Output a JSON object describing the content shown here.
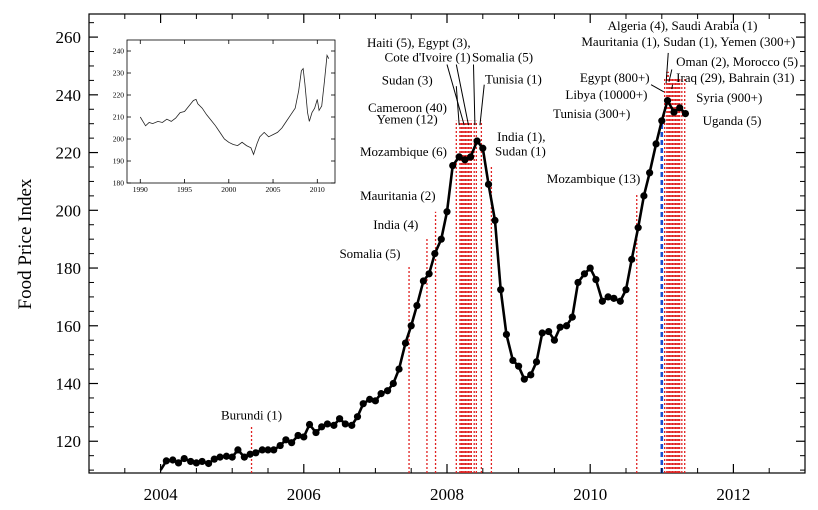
{
  "chart_data": {
    "type": "line",
    "ylabel": "Food Price Index",
    "xlabel": "",
    "xlim": [
      2003.0,
      2013.0
    ],
    "ylim": [
      109,
      268
    ],
    "xticks": [
      2004,
      2006,
      2008,
      2010,
      2012
    ],
    "yticks": [
      120,
      140,
      160,
      180,
      200,
      220,
      240,
      260
    ],
    "grid": false,
    "colors": {
      "line": "#000000",
      "event": "#e02020",
      "highlight": "#1a4fd0"
    },
    "series": [
      {
        "values": [
          [
            2004.0,
            110.0
          ],
          [
            2004.08,
            113.2
          ],
          [
            2004.17,
            113.5
          ],
          [
            2004.25,
            112.5
          ],
          [
            2004.33,
            114.0
          ],
          [
            2004.42,
            113.0
          ],
          [
            2004.5,
            112.5
          ],
          [
            2004.58,
            113.0
          ],
          [
            2004.67,
            112.3
          ],
          [
            2004.75,
            113.8
          ],
          [
            2004.83,
            114.5
          ],
          [
            2004.92,
            114.8
          ],
          [
            2005.0,
            114.5
          ],
          [
            2005.08,
            117.0
          ],
          [
            2005.17,
            114.5
          ],
          [
            2005.25,
            115.5
          ],
          [
            2005.33,
            116.0
          ],
          [
            2005.42,
            117.0
          ],
          [
            2005.5,
            117.0
          ],
          [
            2005.58,
            117.0
          ],
          [
            2005.67,
            118.5
          ],
          [
            2005.75,
            120.5
          ],
          [
            2005.83,
            119.5
          ],
          [
            2005.92,
            122.0
          ],
          [
            2006.0,
            121.5
          ],
          [
            2006.08,
            125.8
          ],
          [
            2006.17,
            123.0
          ],
          [
            2006.25,
            125.0
          ],
          [
            2006.33,
            126.0
          ],
          [
            2006.42,
            125.5
          ],
          [
            2006.5,
            127.8
          ],
          [
            2006.58,
            126.0
          ],
          [
            2006.67,
            125.5
          ],
          [
            2006.75,
            128.5
          ],
          [
            2006.83,
            133.0
          ],
          [
            2006.92,
            134.5
          ],
          [
            2007.0,
            134.0
          ],
          [
            2007.08,
            136.5
          ],
          [
            2007.17,
            137.5
          ],
          [
            2007.25,
            140.0
          ],
          [
            2007.33,
            145.0
          ],
          [
            2007.42,
            154.0
          ],
          [
            2007.5,
            160.0
          ],
          [
            2007.58,
            167.0
          ],
          [
            2007.67,
            175.5
          ],
          [
            2007.75,
            178.0
          ],
          [
            2007.83,
            185.0
          ],
          [
            2007.92,
            190.0
          ],
          [
            2008.0,
            199.5
          ],
          [
            2008.08,
            215.5
          ],
          [
            2008.17,
            218.5
          ],
          [
            2008.25,
            217.5
          ],
          [
            2008.33,
            218.5
          ],
          [
            2008.42,
            224.0
          ],
          [
            2008.5,
            221.5
          ],
          [
            2008.58,
            209.0
          ],
          [
            2008.67,
            196.5
          ],
          [
            2008.75,
            172.5
          ],
          [
            2008.83,
            157.0
          ],
          [
            2008.92,
            148.0
          ],
          [
            2009.0,
            146.0
          ],
          [
            2009.08,
            141.5
          ],
          [
            2009.17,
            143.0
          ],
          [
            2009.25,
            147.5
          ],
          [
            2009.33,
            157.5
          ],
          [
            2009.42,
            158.0
          ],
          [
            2009.5,
            155.0
          ],
          [
            2009.58,
            159.5
          ],
          [
            2009.67,
            160.0
          ],
          [
            2009.75,
            163.0
          ],
          [
            2009.83,
            175.0
          ],
          [
            2009.92,
            178.0
          ],
          [
            2010.0,
            180.0
          ],
          [
            2010.08,
            176.0
          ],
          [
            2010.17,
            168.5
          ],
          [
            2010.25,
            170.0
          ],
          [
            2010.33,
            169.5
          ],
          [
            2010.42,
            168.5
          ],
          [
            2010.5,
            172.5
          ],
          [
            2010.58,
            183.0
          ],
          [
            2010.67,
            194.0
          ],
          [
            2010.75,
            205.0
          ],
          [
            2010.83,
            213.0
          ],
          [
            2010.92,
            223.0
          ],
          [
            2011.0,
            231.0
          ],
          [
            2011.08,
            238.0
          ],
          [
            2011.17,
            234.0
          ],
          [
            2011.25,
            235.5
          ],
          [
            2011.33,
            233.5
          ]
        ]
      }
    ],
    "events": [
      {
        "x": 2005.27,
        "y_top": 125.2
      },
      {
        "x": 2007.47,
        "y_top": 180.5
      },
      {
        "x": 2007.72,
        "y_top": 190.5
      },
      {
        "x": 2007.84,
        "y_top": 199.5
      },
      {
        "x": 2008.13,
        "y_top": 231.0
      },
      {
        "x": 2008.18,
        "y_top": 231.0
      },
      {
        "x": 2008.2,
        "y_top": 231.0
      },
      {
        "x": 2008.22,
        "y_top": 231.0
      },
      {
        "x": 2008.24,
        "y_top": 231.0
      },
      {
        "x": 2008.26,
        "y_top": 231.0
      },
      {
        "x": 2008.28,
        "y_top": 231.0
      },
      {
        "x": 2008.3,
        "y_top": 231.0
      },
      {
        "x": 2008.32,
        "y_top": 231.0
      },
      {
        "x": 2008.34,
        "y_top": 231.0
      },
      {
        "x": 2008.38,
        "y_top": 231.0
      },
      {
        "x": 2008.41,
        "y_top": 231.0
      },
      {
        "x": 2008.48,
        "y_top": 231.0
      },
      {
        "x": 2008.62,
        "y_top": 215.0
      },
      {
        "x": 2010.65,
        "y_top": 206.0
      },
      {
        "x": 2011.0,
        "y_top": 232.0,
        "highlight": true
      },
      {
        "x": 2011.04,
        "y_top": 246.0
      },
      {
        "x": 2011.07,
        "y_top": 248.0
      },
      {
        "x": 2011.09,
        "y_top": 248.0
      },
      {
        "x": 2011.11,
        "y_top": 246.0
      },
      {
        "x": 2011.13,
        "y_top": 246.0
      },
      {
        "x": 2011.15,
        "y_top": 246.0
      },
      {
        "x": 2011.17,
        "y_top": 246.0
      },
      {
        "x": 2011.19,
        "y_top": 246.0
      },
      {
        "x": 2011.21,
        "y_top": 246.0
      },
      {
        "x": 2011.23,
        "y_top": 246.0
      },
      {
        "x": 2011.25,
        "y_top": 246.0
      },
      {
        "x": 2011.28,
        "y_top": 246.0
      },
      {
        "x": 2011.32,
        "y_top": 246.0
      }
    ],
    "annotations": [
      {
        "text": "Burundi (1)",
        "x": 2005.27,
        "y": 127.5,
        "anchor": "middle"
      },
      {
        "text": "Somalia (5)",
        "x": 2007.35,
        "y": 183.5,
        "anchor": "end"
      },
      {
        "text": "India (4)",
        "x": 2007.6,
        "y": 193.5,
        "anchor": "end"
      },
      {
        "text": "Mauritania (2)",
        "x": 2007.84,
        "y": 203.5,
        "anchor": "end"
      },
      {
        "text": "Mozambique (6)",
        "x": 2008.0,
        "y": 218.8,
        "anchor": "end"
      },
      {
        "text": "Yemen (12)",
        "x": 2007.87,
        "y": 230.0,
        "anchor": "end"
      },
      {
        "text": "Cameroon (40)",
        "x": 2008.0,
        "y": 234.0,
        "anchor": "end"
      },
      {
        "text": "Sudan (3)",
        "x": 2007.8,
        "y": 243.5,
        "anchor": "end"
      },
      {
        "text": "Cote d'Ivoire (1)",
        "x": 2008.33,
        "y": 251.5,
        "anchor": "end"
      },
      {
        "text": "Haiti (5), Egypt (3),",
        "x": 2008.33,
        "y": 256.5,
        "anchor": "end"
      },
      {
        "text": "Somalia (5)",
        "x": 2008.35,
        "y": 251.5,
        "anchor": "start"
      },
      {
        "text": "Tunisia (1)",
        "x": 2008.53,
        "y": 244.0,
        "anchor": "start"
      },
      {
        "text": "India (1),",
        "x": 2008.7,
        "y": 224.0,
        "anchor": "start"
      },
      {
        "text": "Sudan (1)",
        "x": 2008.67,
        "y": 219.0,
        "anchor": "start"
      },
      {
        "text": "Mozambique (13)",
        "x": 2010.7,
        "y": 209.5,
        "anchor": "end"
      },
      {
        "text": "Tunisia (300+)",
        "x": 2010.56,
        "y": 232.0,
        "anchor": "end"
      },
      {
        "text": "Libya (10000+)",
        "x": 2010.8,
        "y": 238.5,
        "anchor": "end"
      },
      {
        "text": "Egypt (800+)",
        "x": 2010.83,
        "y": 244.5,
        "anchor": "end"
      },
      {
        "text": "Algeria (4), Saudi Arabia (1)",
        "x": 2011.29,
        "y": 262.5,
        "anchor": "middle"
      },
      {
        "text": "Mauritania (1), Sudan (1), Yemen (300+)",
        "x": 2011.37,
        "y": 257.0,
        "anchor": "middle"
      },
      {
        "text": "Oman (2), Morocco (5)",
        "x": 2011.2,
        "y": 250.0,
        "anchor": "start"
      },
      {
        "text": "Iraq (29), Bahrain (31)",
        "x": 2011.2,
        "y": 244.5,
        "anchor": "start"
      },
      {
        "text": "Syria (900+)",
        "x": 2011.48,
        "y": 237.5,
        "anchor": "start"
      },
      {
        "text": "Uganda (5)",
        "x": 2011.57,
        "y": 229.5,
        "anchor": "start"
      }
    ],
    "pointers": [
      {
        "from": [
          2008.13,
          243.0
        ],
        "to": [
          2008.17,
          229.5
        ]
      },
      {
        "from": [
          2008.0,
          250.5
        ],
        "to": [
          2008.24,
          229.5
        ]
      },
      {
        "from": [
          2008.13,
          250.5
        ],
        "to": [
          2008.3,
          229.5
        ]
      },
      {
        "from": [
          2008.37,
          250.5
        ],
        "to": [
          2008.39,
          229.5
        ]
      },
      {
        "from": [
          2008.52,
          243.5
        ],
        "to": [
          2008.46,
          229.5
        ]
      },
      {
        "from": [
          2010.85,
          243.5
        ],
        "to": [
          2011.03,
          241.0
        ]
      },
      {
        "from": [
          2011.09,
          254.5
        ],
        "to": [
          2011.06,
          244.0
        ]
      },
      {
        "from": [
          2011.14,
          248.8
        ],
        "to": [
          2011.1,
          244.5
        ]
      },
      {
        "from": [
          2011.15,
          243.5
        ],
        "to": [
          2011.14,
          242.0
        ]
      }
    ],
    "inset": {
      "xlim": [
        1988.5,
        2012
      ],
      "ylim": [
        180,
        245
      ],
      "xticks": [
        1990,
        1995,
        2000,
        2005,
        2010
      ],
      "yticks": [
        180,
        190,
        200,
        210,
        220,
        230,
        240
      ],
      "values": [
        [
          1990.0,
          210.0
        ],
        [
          1990.3,
          208.0
        ],
        [
          1990.6,
          206.0
        ],
        [
          1991.0,
          207.5
        ],
        [
          1991.4,
          207.0
        ],
        [
          1992.0,
          208.0
        ],
        [
          1992.5,
          207.5
        ],
        [
          1993.0,
          209.0
        ],
        [
          1993.5,
          208.0
        ],
        [
          1994.0,
          209.5
        ],
        [
          1994.5,
          212.0
        ],
        [
          1995.0,
          212.5
        ],
        [
          1995.5,
          215.0
        ],
        [
          1996.0,
          217.5
        ],
        [
          1996.3,
          218.0
        ],
        [
          1996.5,
          216.0
        ],
        [
          1997.0,
          214.0
        ],
        [
          1997.5,
          211.0
        ],
        [
          1998.0,
          208.5
        ],
        [
          1998.5,
          206.0
        ],
        [
          1999.0,
          203.0
        ],
        [
          1999.5,
          200.0
        ],
        [
          2000.0,
          198.5
        ],
        [
          2000.5,
          197.5
        ],
        [
          2001.0,
          197.0
        ],
        [
          2001.5,
          198.5
        ],
        [
          2002.0,
          197.0
        ],
        [
          2002.5,
          196.0
        ],
        [
          2002.8,
          193.0
        ],
        [
          2003.2,
          198.0
        ],
        [
          2003.5,
          201.0
        ],
        [
          2004.0,
          203.0
        ],
        [
          2004.5,
          201.0
        ],
        [
          2005.0,
          202.0
        ],
        [
          2005.5,
          203.0
        ],
        [
          2006.0,
          205.0
        ],
        [
          2006.5,
          208.0
        ],
        [
          2007.0,
          211.0
        ],
        [
          2007.5,
          214.0
        ],
        [
          2007.9,
          222.0
        ],
        [
          2008.2,
          231.0
        ],
        [
          2008.4,
          232.0
        ],
        [
          2008.6,
          225.0
        ],
        [
          2008.9,
          212.0
        ],
        [
          2009.1,
          208.0
        ],
        [
          2009.4,
          212.0
        ],
        [
          2009.7,
          214.0
        ],
        [
          2010.0,
          218.0
        ],
        [
          2010.2,
          213.0
        ],
        [
          2010.5,
          215.0
        ],
        [
          2010.8,
          226.0
        ],
        [
          2011.1,
          238.0
        ],
        [
          2011.3,
          236.5
        ]
      ]
    }
  }
}
